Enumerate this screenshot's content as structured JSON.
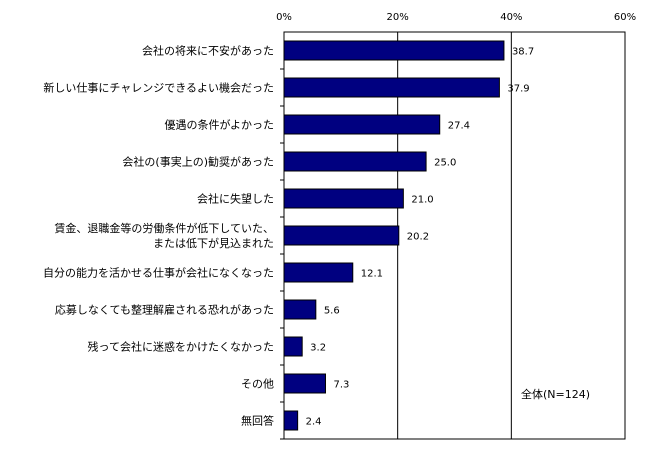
{
  "chart_data": {
    "type": "bar",
    "orientation": "horizontal",
    "categories": [
      [
        "会社の将来に不安があった"
      ],
      [
        "新しい仕事にチャレンジできるよい機会だった"
      ],
      [
        "優遇の条件がよかった"
      ],
      [
        "会社の(事実上の)勧奨があった"
      ],
      [
        "会社に失望した"
      ],
      [
        "賃金、退職金等の労働条件が低下していた、",
        "または低下が見込まれた"
      ],
      [
        "自分の能力を活かせる仕事が会社になくなった"
      ],
      [
        "応募しなくても整理解雇される恐れがあった"
      ],
      [
        "残って会社に迷惑をかけたくなかった"
      ],
      [
        "その他"
      ],
      [
        "無回答"
      ]
    ],
    "values": [
      38.7,
      37.9,
      27.4,
      25.0,
      21.0,
      20.2,
      12.1,
      5.6,
      3.2,
      7.3,
      2.4
    ],
    "value_labels": [
      "38.7",
      "37.9",
      "27.4",
      "25.0",
      "21.0",
      "20.2",
      "12.1",
      "5.6",
      "3.2",
      "7.3",
      "2.4"
    ],
    "x_ticks": [
      0,
      20,
      40,
      60
    ],
    "x_tick_labels": [
      "0%",
      "20%",
      "40%",
      "60%"
    ],
    "xlim": [
      0,
      60
    ],
    "gridlines_at": [
      20,
      40
    ],
    "bar_color": "#000080",
    "annotation": "全体(N=124)"
  }
}
